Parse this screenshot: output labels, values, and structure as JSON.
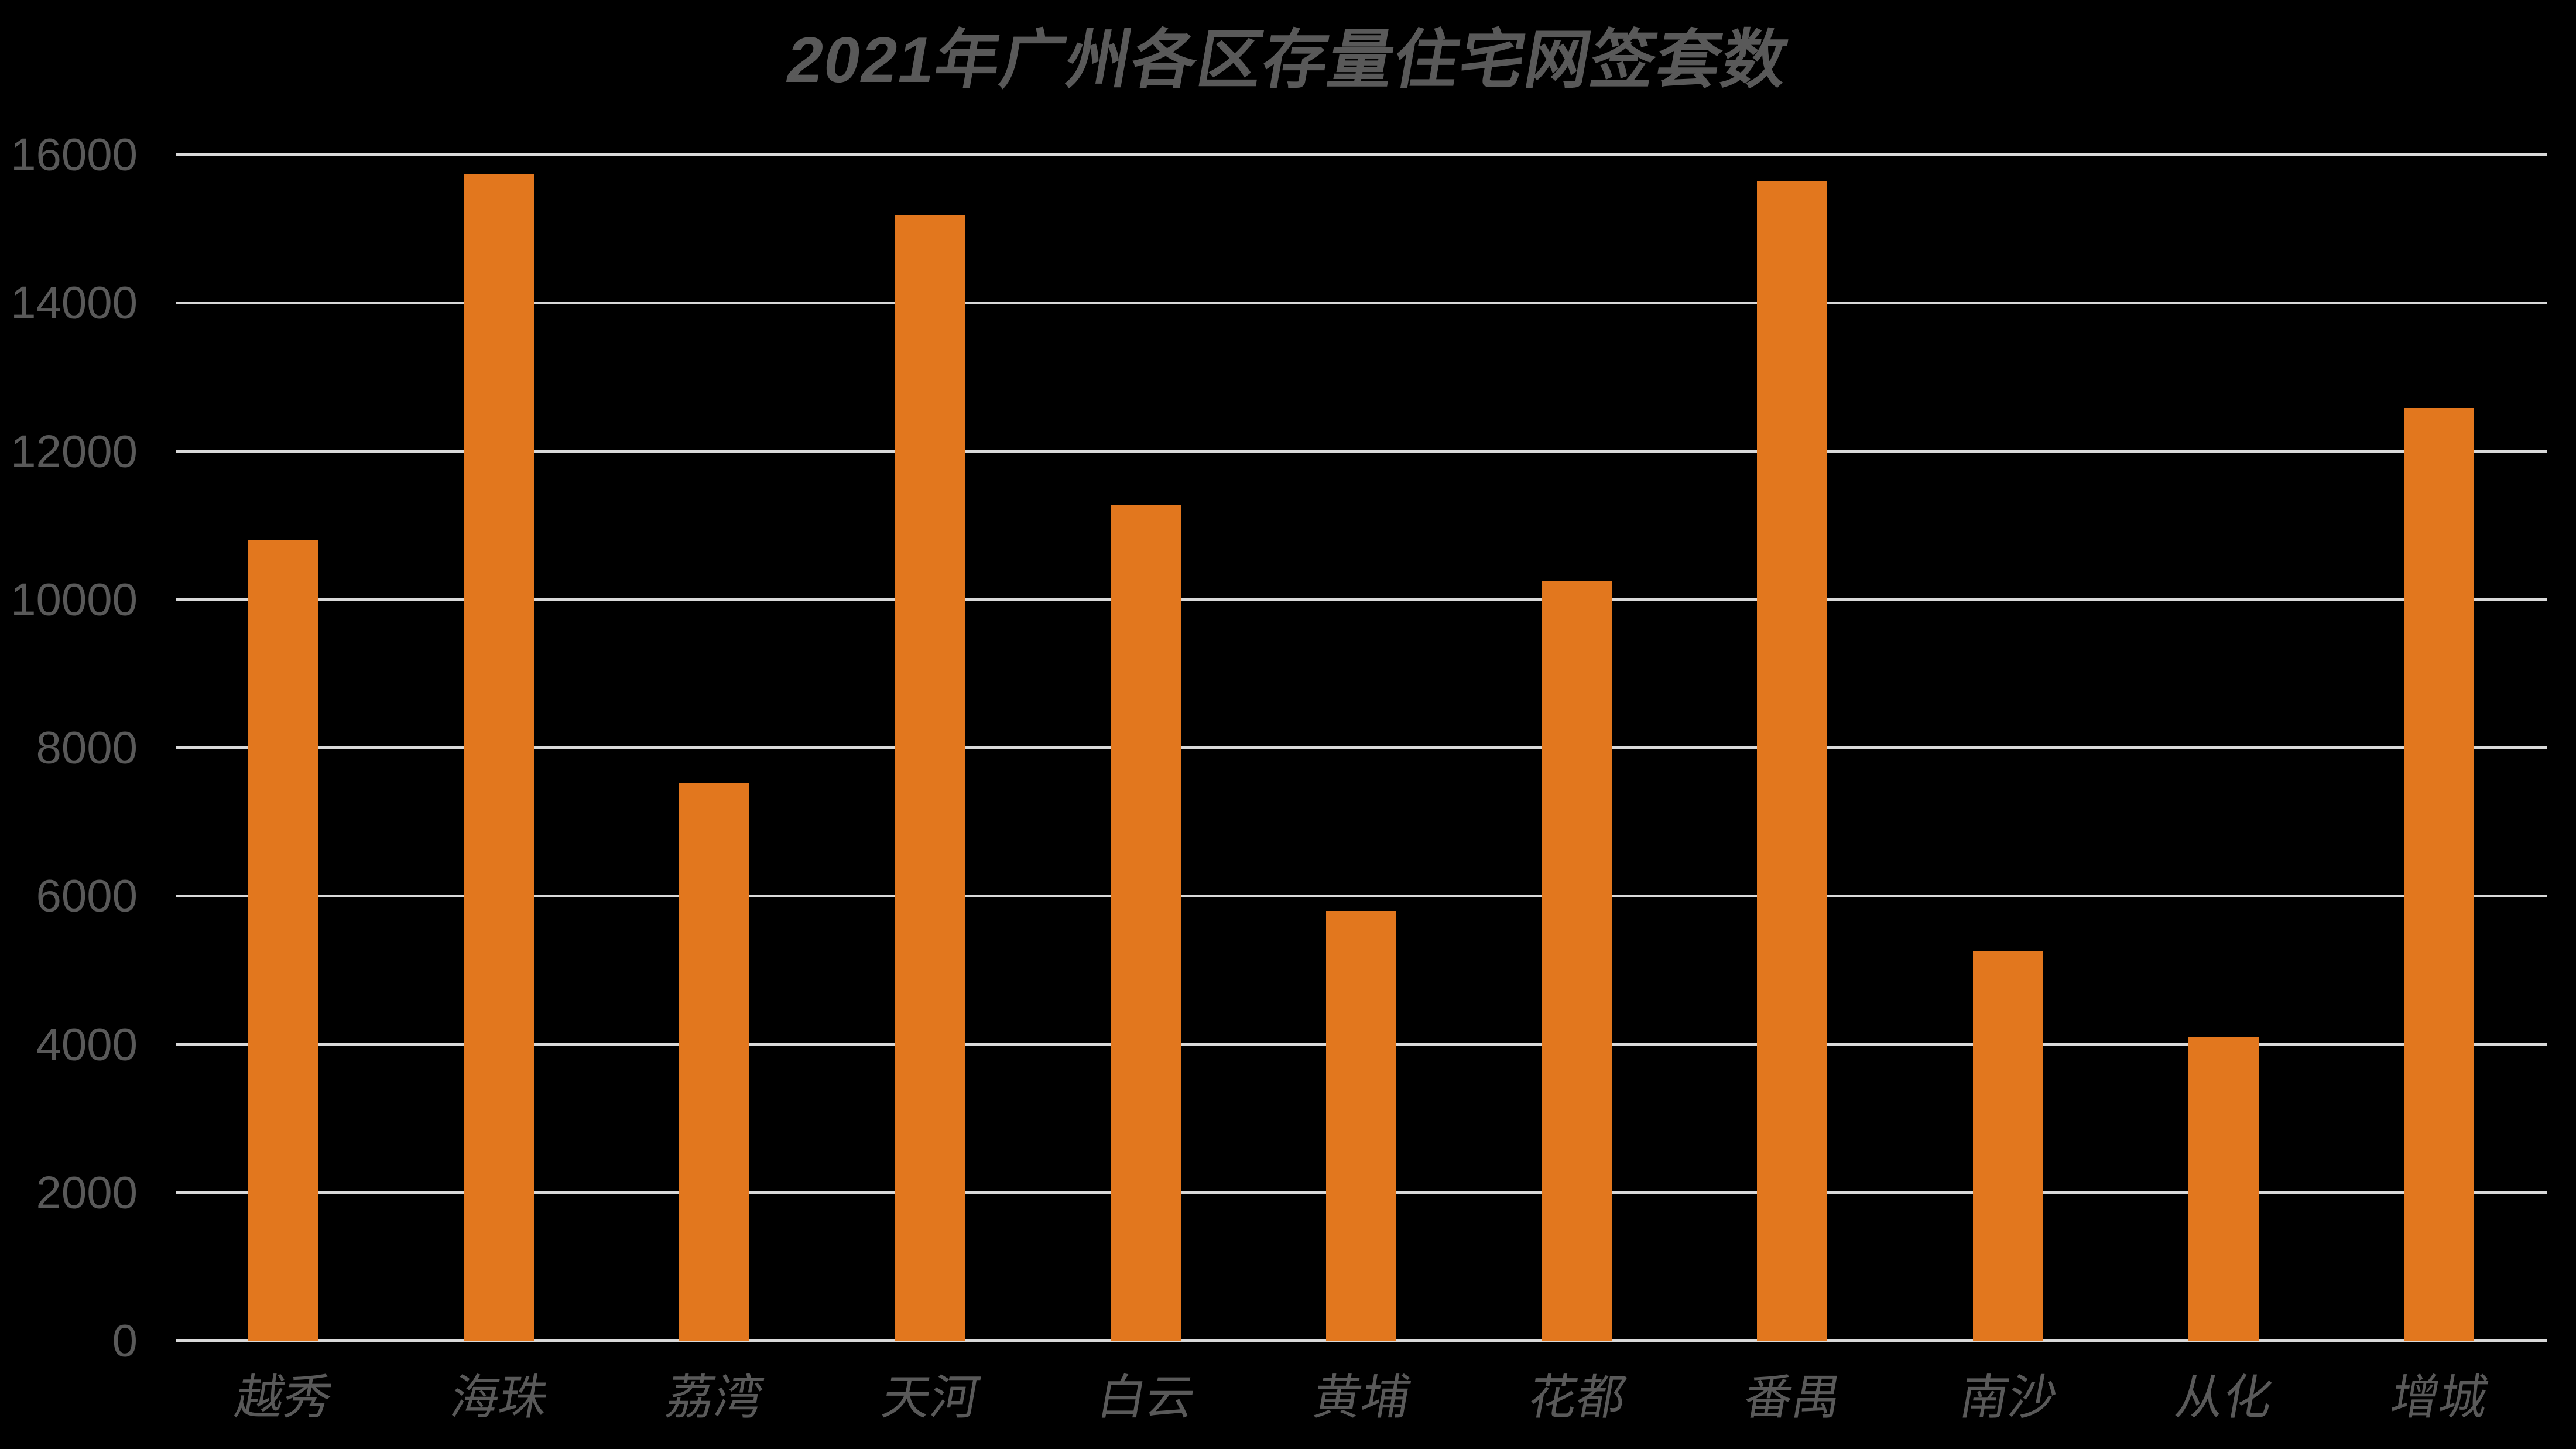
{
  "chart_data": {
    "type": "bar",
    "title": "2021年广州各区存量住宅网签套数",
    "categories": [
      "越秀",
      "海珠",
      "荔湾",
      "天河",
      "白云",
      "黄埔",
      "花都",
      "番禺",
      "南沙",
      "从化",
      "增城"
    ],
    "values": [
      10800,
      15730,
      7520,
      15190,
      11280,
      5800,
      10240,
      15640,
      5250,
      4090,
      12580
    ],
    "xlabel": "",
    "ylabel": "",
    "ylim": [
      0,
      16000
    ],
    "ytick_step": 2000,
    "yticks": [
      0,
      2000,
      4000,
      6000,
      8000,
      10000,
      12000,
      14000,
      16000
    ],
    "grid": true,
    "legend": false,
    "colors": {
      "background": "#000000",
      "bar": "#E2771E",
      "gridline": "#D9D9D9",
      "axis_line": "#D9D9D9",
      "text": "#595959"
    }
  }
}
